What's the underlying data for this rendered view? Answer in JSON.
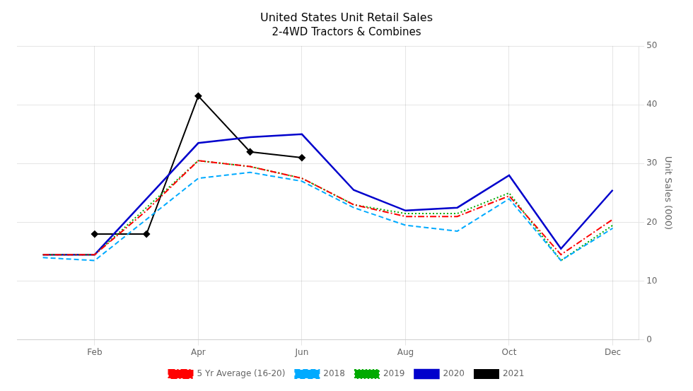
{
  "chart_data": {
    "type": "line",
    "title": "United States Unit Retail Sales",
    "subtitle": "2-4WD Tractors & Combines",
    "y_label": "Unit Sales (000)",
    "categories": [
      null,
      "Feb",
      null,
      "Apr",
      null,
      "Jun",
      null,
      "Aug",
      null,
      "Oct",
      null,
      "Dec"
    ],
    "series": [
      {
        "name": "5 Yr Average (16-20)",
        "color": "#ff0000",
        "line_style": "dashdot",
        "values": [
          14.5,
          14.5,
          22.0,
          30.5,
          29.5,
          27.5,
          23.0,
          21.0,
          21.0,
          24.5,
          14.5,
          20.5
        ]
      },
      {
        "name": "2018",
        "color": "#00aaff",
        "line_style": "dashed",
        "values": [
          14.0,
          13.5,
          20.5,
          27.5,
          28.5,
          27.0,
          22.5,
          19.5,
          18.5,
          24.0,
          13.5,
          19.0
        ]
      },
      {
        "name": "2019",
        "color": "#00aa00",
        "line_style": "dotted",
        "values": [
          14.5,
          14.5,
          22.5,
          30.5,
          29.5,
          27.5,
          23.0,
          21.5,
          21.5,
          25.0,
          13.5,
          19.5
        ]
      },
      {
        "name": "2020",
        "color": "#0000cc",
        "line_style": "solid",
        "values": [
          14.5,
          14.5,
          24.0,
          33.5,
          34.5,
          35.0,
          25.5,
          22.0,
          22.5,
          28.0,
          15.5,
          25.5
        ]
      },
      {
        "name": "2021",
        "color": "#000000",
        "line_style": "solid",
        "marker": "diamond",
        "values": [
          null,
          18.0,
          18.0,
          41.5,
          32.0,
          31.0,
          null,
          null,
          null,
          null,
          null,
          null
        ]
      }
    ],
    "ylim": [
      0,
      50
    ],
    "yticks": [
      0,
      10,
      20,
      30,
      40,
      50
    ],
    "grid": true,
    "legend": "bottom"
  }
}
